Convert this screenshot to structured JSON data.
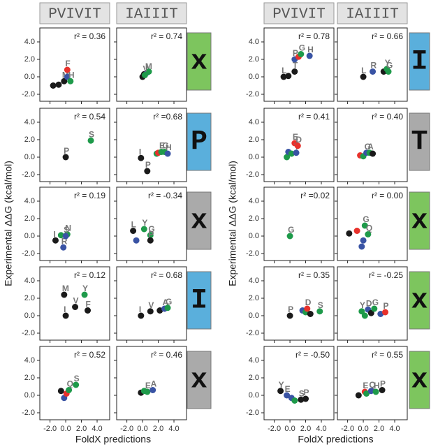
{
  "figure": {
    "y_label": "Experimental ΔΔG (kcal/mol)",
    "x_label": "FoldX predictions",
    "xlim": [
      -3.3,
      5.6
    ],
    "ylim": [
      -2.8,
      5.6
    ],
    "xticks": [
      {
        "value": -2,
        "label": "-2.0"
      },
      {
        "value": 0,
        "label": "0.0"
      },
      {
        "value": 2,
        "label": "2.0"
      },
      {
        "value": 4,
        "label": "4.0"
      }
    ],
    "yticks": [
      {
        "value": -2,
        "label": "-2.0"
      },
      {
        "value": 0,
        "label": "0.0"
      },
      {
        "value": 2,
        "label": "2.0"
      },
      {
        "value": 4,
        "label": "4.0"
      }
    ],
    "halves": [
      {
        "columns": [
          "PVIVIT",
          "IAIIIT"
        ],
        "rows": [
          {
            "label": "x",
            "color": "#7dc55e"
          },
          {
            "label": "P",
            "color": "#5aafdc"
          },
          {
            "label": "x",
            "color": "#aaaaaa"
          },
          {
            "label": "I",
            "color": "#5aafdc"
          },
          {
            "label": "x",
            "color": "#aaaaaa"
          }
        ]
      },
      {
        "columns": [
          "PVIVIT",
          "IAIIIT"
        ],
        "rows": [
          {
            "label": "I",
            "color": "#5aafdc"
          },
          {
            "label": "T",
            "color": "#aaaaaa"
          },
          {
            "label": "x",
            "color": "#7dc55e"
          },
          {
            "label": "x",
            "color": "#7dc55e"
          },
          {
            "label": "x",
            "color": "#7dc55e"
          }
        ]
      }
    ]
  },
  "chart_data": [
    {
      "type": "scatter",
      "annotation": "r² = 0.36",
      "x": [
        -1.6,
        -0.9,
        -0.2,
        0.2,
        0.2,
        0.6
      ],
      "values": [
        -1.0,
        -0.9,
        -0.5,
        0.8,
        0.0,
        -0.5
      ],
      "point_labels": [
        null,
        null,
        "M",
        "F",
        null,
        "H"
      ],
      "colors": [
        "#1a1a1a",
        "#1a1a1a",
        "#1a1a1a",
        "#e8312b",
        "#3953a4",
        "#1e9a4a"
      ]
    },
    {
      "type": "scatter",
      "annotation": "r² = 0.74",
      "x": [
        0.0,
        0.2,
        0.6,
        0.8,
        0.3
      ],
      "values": [
        0.0,
        0.3,
        0.5,
        0.6,
        0.2
      ],
      "point_labels": [
        null,
        null,
        "M",
        null,
        "V"
      ],
      "colors": [
        "#1a1a1a",
        "#1a1a1a",
        "#3953a4",
        "#1e9a4a",
        "#1e9a4a"
      ]
    },
    {
      "type": "scatter",
      "annotation": "r² = 0.54",
      "x": [
        0.0,
        3.2
      ],
      "values": [
        0.0,
        1.9
      ],
      "point_labels": [
        "P",
        "S"
      ],
      "colors": [
        "#1a1a1a",
        "#1e9a4a"
      ]
    },
    {
      "type": "scatter",
      "annotation": "r² =0.68",
      "x": [
        -0.2,
        0.6,
        1.8,
        2.0,
        2.4,
        2.8,
        3.2
      ],
      "values": [
        -0.1,
        -1.6,
        0.4,
        0.5,
        0.6,
        0.6,
        0.4
      ],
      "point_labels": [
        "I",
        "P",
        null,
        null,
        "E",
        "G",
        "H"
      ],
      "colors": [
        "#1a1a1a",
        "#1a1a1a",
        "#1e9a4a",
        "#e8312b",
        "#1e9a4a",
        "#1e9a4a",
        "#3953a4"
      ]
    },
    {
      "type": "scatter",
      "annotation": "r² = 0.19",
      "x": [
        -1.3,
        -0.6,
        -0.3,
        0.2,
        0.0
      ],
      "values": [
        -0.5,
        0.1,
        -1.3,
        0.2,
        0.0
      ],
      "point_labels": [
        "I",
        null,
        "R",
        "N",
        "S"
      ],
      "colors": [
        "#1a1a1a",
        "#1e9a4a",
        "#3953a4",
        "#1e9a4a",
        "#3953a4"
      ]
    },
    {
      "type": "scatter",
      "annotation": "r² = -0.34",
      "x": [
        -1.2,
        -0.8,
        0.2,
        1.0,
        1.0
      ],
      "values": [
        0.6,
        -0.5,
        0.8,
        0.1,
        -0.5
      ],
      "point_labels": [
        "L",
        null,
        "Y",
        "G",
        "P"
      ],
      "colors": [
        "#1a1a1a",
        "#3953a4",
        "#1e9a4a",
        "#1e9a4a",
        "#1a1a1a"
      ]
    },
    {
      "type": "scatter",
      "annotation": "r² = 0.12",
      "x": [
        -0.2,
        0.0,
        1.2,
        2.4,
        2.8
      ],
      "values": [
        2.4,
        0.0,
        1.0,
        2.4,
        0.6
      ],
      "point_labels": [
        "M",
        "I",
        "V",
        "Y",
        "F"
      ],
      "colors": [
        "#1a1a1a",
        "#1a1a1a",
        "#1a1a1a",
        "#1e9a4a",
        "#1a1a1a"
      ]
    },
    {
      "type": "scatter",
      "annotation": "r² = 0.68",
      "x": [
        -0.2,
        1.0,
        2.2,
        2.8,
        3.2
      ],
      "values": [
        0.0,
        0.5,
        0.6,
        0.8,
        0.9
      ],
      "point_labels": [
        "I",
        "V",
        null,
        "A",
        "G"
      ],
      "colors": [
        "#1a1a1a",
        "#1a1a1a",
        "#1a1a1a",
        "#3953a4",
        "#1e9a4a"
      ]
    },
    {
      "type": "scatter",
      "annotation": "r² = 0.52",
      "x": [
        -0.6,
        -0.2,
        0.1,
        0.4,
        1.3
      ],
      "values": [
        0.5,
        -0.3,
        0.2,
        0.6,
        1.2
      ],
      "point_labels": [
        null,
        null,
        null,
        "Q",
        "S"
      ],
      "colors": [
        "#1a1a1a",
        "#3953a4",
        "#e8312b",
        "#1e9a4a",
        "#1e9a4a"
      ]
    },
    {
      "type": "scatter",
      "annotation": "r² = 0.46",
      "x": [
        -0.2,
        0.2,
        0.6,
        1.3
      ],
      "values": [
        0.3,
        0.5,
        0.4,
        0.6
      ],
      "point_labels": [
        null,
        null,
        "E",
        "A"
      ],
      "colors": [
        "#1a1a1a",
        "#1e9a4a",
        "#1e9a4a",
        "#3953a4"
      ]
    },
    {
      "type": "scatter",
      "annotation": "r² = 0.78",
      "x": [
        -0.8,
        -0.2,
        0.6,
        0.6,
        1.1,
        1.4,
        2.5
      ],
      "values": [
        0.0,
        0.1,
        0.6,
        2.0,
        2.3,
        2.6,
        2.4
      ],
      "point_labels": [
        "L",
        null,
        "T",
        "P",
        null,
        "G",
        "H"
      ],
      "colors": [
        "#1a1a1a",
        "#1a1a1a",
        "#1a1a1a",
        "#3953a4",
        "#e8312b",
        "#1e9a4a",
        "#3953a4"
      ]
    },
    {
      "type": "scatter",
      "annotation": "r² = 0.66",
      "x": [
        0.0,
        1.2,
        2.6,
        3.0,
        3.2
      ],
      "values": [
        0.0,
        0.6,
        0.6,
        0.9,
        0.6
      ],
      "point_labels": [
        "L",
        "R",
        null,
        "Y",
        "G"
      ],
      "colors": [
        "#1a1a1a",
        "#3953a4",
        "#1a1a1a",
        "#1e9a4a",
        "#1e9a4a"
      ]
    },
    {
      "type": "scatter",
      "annotation": "r² = 0.41",
      "x": [
        -0.4,
        -0.2,
        0.2,
        0.6,
        0.8,
        1.0
      ],
      "values": [
        0.0,
        0.6,
        0.4,
        1.6,
        0.5,
        1.3
      ],
      "point_labels": [
        null,
        null,
        null,
        "E",
        "T",
        "D"
      ],
      "colors": [
        "#1e9a4a",
        "#3953a4",
        "#1e9a4a",
        "#e8312b",
        "#3953a4",
        "#e8312b"
      ]
    },
    {
      "type": "scatter",
      "annotation": "r² = 0.40",
      "x": [
        -0.4,
        0.0,
        0.4,
        0.8,
        1.2
      ],
      "values": [
        0.2,
        0.1,
        0.5,
        0.5,
        0.4
      ],
      "point_labels": [
        null,
        null,
        "G",
        "A",
        null
      ],
      "colors": [
        "#e8312b",
        "#1e9a4a",
        "#3953a4",
        "#1e9a4a",
        "#1a1a1a"
      ]
    },
    {
      "type": "scatter",
      "annotation": "r² =0.02",
      "x": [
        0.0
      ],
      "values": [
        0.0
      ],
      "point_labels": [
        "G"
      ],
      "colors": [
        "#1e9a4a"
      ]
    },
    {
      "type": "scatter",
      "annotation": "r² = 0.00",
      "x": [
        -1.8,
        -0.8,
        0.2,
        -0.2,
        0.6,
        0.0
      ],
      "values": [
        0.3,
        0.6,
        1.2,
        -1.2,
        0.2,
        -0.5
      ],
      "point_labels": [
        null,
        null,
        "G",
        null,
        "Q",
        null
      ],
      "colors": [
        "#1a1a1a",
        "#e8312b",
        "#1e9a4a",
        "#3953a4",
        "#1e9a4a",
        "#3953a4"
      ]
    },
    {
      "type": "scatter",
      "annotation": "r² = 0.35",
      "x": [
        0.0,
        1.6,
        2.0,
        2.2,
        2.6,
        3.8
      ],
      "values": [
        0.0,
        0.6,
        0.4,
        0.8,
        0.2,
        0.5
      ],
      "point_labels": [
        "P",
        null,
        null,
        "D",
        null,
        "S"
      ],
      "colors": [
        "#1a1a1a",
        "#3953a4",
        "#1e9a4a",
        "#e8312b",
        "#1a1a1a",
        "#1e9a4a"
      ]
    },
    {
      "type": "scatter",
      "annotation": "r² = -0.25",
      "x": [
        -0.2,
        0.2,
        0.6,
        1.0,
        1.4,
        2.2,
        2.8
      ],
      "values": [
        0.5,
        0.0,
        0.7,
        0.3,
        0.8,
        0.2,
        0.4
      ],
      "point_labels": [
        "Y",
        null,
        "D",
        null,
        "G",
        null,
        "P"
      ],
      "colors": [
        "#1e9a4a",
        "#1e9a4a",
        "#3953a4",
        "#1a1a1a",
        "#1e9a4a",
        "#3953a4",
        "#e8312b"
      ]
    },
    {
      "type": "scatter",
      "annotation": "r² = -0.50",
      "x": [
        -1.2,
        -0.4,
        0.2,
        0.6,
        1.4,
        2.0
      ],
      "values": [
        0.5,
        0.0,
        -0.3,
        -0.6,
        -0.5,
        -0.4
      ],
      "point_labels": [
        "Y",
        "E",
        null,
        null,
        "S",
        "P"
      ],
      "colors": [
        "#1a1a1a",
        "#3953a4",
        "#3953a4",
        "#1e9a4a",
        "#1a1a1a",
        "#1a1a1a"
      ]
    },
    {
      "type": "scatter",
      "annotation": "r² = 0.55",
      "x": [
        -0.6,
        0.2,
        0.4,
        1.0,
        1.6,
        2.4
      ],
      "values": [
        0.0,
        0.4,
        0.2,
        0.5,
        0.4,
        0.6
      ],
      "point_labels": [
        null,
        "E",
        null,
        "Q",
        "H",
        "P"
      ],
      "colors": [
        "#1a1a1a",
        "#e8312b",
        "#1e9a4a",
        "#3953a4",
        "#1e9a4a",
        "#1a1a1a"
      ]
    }
  ]
}
